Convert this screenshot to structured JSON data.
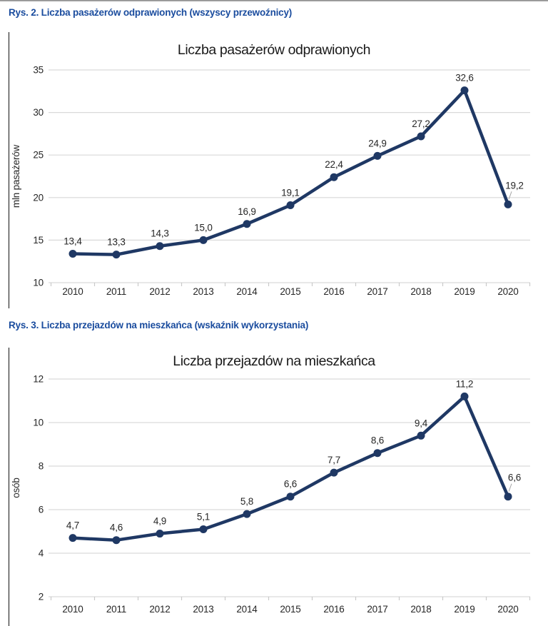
{
  "figures": [
    {
      "caption": "Rys. 2. Liczba pasażerów odprawionych (wszyscy przewoźnicy)"
    },
    {
      "caption": "Rys. 3. Liczba przejazdów na mieszkańca (wskaźnik wykorzystania)"
    }
  ],
  "chart_data": [
    {
      "type": "line",
      "title": "Liczba pasażerów odprawionych",
      "xlabel": "",
      "ylabel": "mln pasażerów",
      "categories": [
        "2010",
        "2011",
        "2012",
        "2013",
        "2014",
        "2015",
        "2016",
        "2017",
        "2018",
        "2019",
        "2020"
      ],
      "values": [
        13.4,
        13.3,
        14.3,
        15.0,
        16.9,
        19.1,
        22.4,
        24.9,
        27.2,
        32.6,
        19.2
      ],
      "value_labels": [
        "13,4",
        "13,3",
        "14,3",
        "15,0",
        "16,9",
        "19,1",
        "22,4",
        "24,9",
        "27,2",
        "32,6",
        "19,2"
      ],
      "ylim": [
        10,
        35
      ],
      "yticks": [
        10,
        15,
        20,
        25,
        30,
        35
      ],
      "grid": true,
      "legend": false,
      "last_label_has_leader_line": true
    },
    {
      "type": "line",
      "title": "Liczba przejazdów na mieszkańca",
      "xlabel": "",
      "ylabel": "osób",
      "categories": [
        "2010",
        "2011",
        "2012",
        "2013",
        "2014",
        "2015",
        "2016",
        "2017",
        "2018",
        "2019",
        "2020"
      ],
      "values": [
        4.7,
        4.6,
        4.9,
        5.1,
        5.8,
        6.6,
        7.7,
        8.6,
        9.4,
        11.2,
        6.6
      ],
      "value_labels": [
        "4,7",
        "4,6",
        "4,9",
        "5,1",
        "5,8",
        "6,6",
        "7,7",
        "8,6",
        "9,4",
        "11,2",
        "6,6"
      ],
      "ylim": [
        2,
        12
      ],
      "yticks": [
        2,
        4,
        6,
        8,
        10,
        12
      ],
      "grid": true,
      "legend": false,
      "last_label_has_leader_line": true
    }
  ],
  "colors": {
    "caption_blue": "#1A4C9E",
    "series_line": "#1F3864",
    "gridline": "#D9D9D9",
    "axis_tick": "#C9C9C9",
    "leader_line": "#A6A6A6",
    "label_text": "#262626",
    "title_text": "#1a1a1a"
  }
}
